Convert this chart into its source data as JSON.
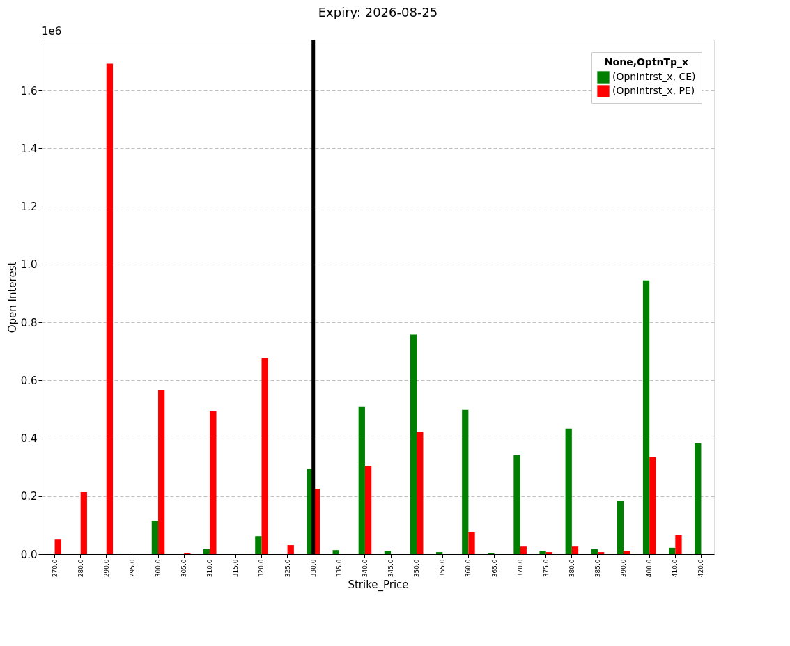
{
  "chart_data": {
    "type": "bar",
    "title": "Expiry: 2026-08-25",
    "xlabel": "Strike_Price",
    "ylabel": "Open Interest",
    "legend_title": "None,OptnTp_x",
    "categories": [
      "270.0",
      "280.0",
      "290.0",
      "295.0",
      "300.0",
      "305.0",
      "310.0",
      "315.0",
      "320.0",
      "325.0",
      "330.0",
      "335.0",
      "340.0",
      "345.0",
      "350.0",
      "355.0",
      "360.0",
      "365.0",
      "370.0",
      "375.0",
      "380.0",
      "385.0",
      "390.0",
      "400.0",
      "410.0",
      "420.0"
    ],
    "series": [
      {
        "name": "(OpnIntrst_x, CE)",
        "color": "#008000",
        "values": [
          0,
          0,
          0,
          0,
          0.115,
          0,
          0.017,
          0,
          0.062,
          0,
          0.293,
          0.014,
          0.51,
          0.012,
          0.758,
          0.007,
          0.498,
          0.004,
          0.342,
          0.012,
          0.433,
          0.017,
          0.183,
          0.945,
          0.022,
          0.383
        ]
      },
      {
        "name": "(OpnIntrst_x, PE)",
        "color": "#ff0000",
        "values": [
          0.05,
          0.214,
          1.693,
          0,
          0.567,
          0.003,
          0.493,
          0,
          0.678,
          0.031,
          0.226,
          0,
          0.305,
          0,
          0.423,
          0,
          0.077,
          0,
          0.026,
          0.007,
          0.026,
          0.007,
          0.012,
          0.334,
          0.065,
          0
        ]
      }
    ],
    "ylim": [
      0,
      1.776
    ],
    "yticks": [
      {
        "value": 0,
        "label": "0.0"
      },
      {
        "value": 0.2,
        "label": "0.2"
      },
      {
        "value": 0.4,
        "label": "0.4"
      },
      {
        "value": 0.6,
        "label": "0.6"
      },
      {
        "value": 0.8,
        "label": "0.8"
      },
      {
        "value": 1.0,
        "label": "1.0"
      },
      {
        "value": 1.2,
        "label": "1.2"
      },
      {
        "value": 1.4,
        "label": "1.4"
      },
      {
        "value": 1.6,
        "label": "1.6"
      }
    ],
    "ref_lines": [
      {
        "axis": "x",
        "value": "330.0",
        "color": "#000000"
      }
    ],
    "annotations": [
      "1e6"
    ],
    "grid": "y",
    "legend": "top right"
  }
}
